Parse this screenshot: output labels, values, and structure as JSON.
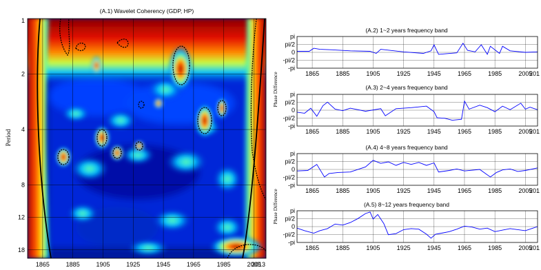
{
  "chart_data": [
    {
      "type": "heatmap",
      "title": "(A.1)  Wavelet Coherency (GDP, HP)",
      "xlabel": "",
      "ylabel": "Period",
      "xlim": [
        1855,
        2013
      ],
      "xticks": [
        "1865",
        "1885",
        "1905",
        "1925",
        "1945",
        "1965",
        "1985",
        "2005",
        "2013"
      ],
      "yticks": [
        1,
        2,
        4,
        8,
        12,
        18
      ],
      "yscale": "log2",
      "colormap": "jet",
      "grid": true
    },
    {
      "type": "line",
      "title": "(A.2)  1~2 years frequency band",
      "ylabel": "Phase Difference",
      "xticks": [
        "1865",
        "1885",
        "1905",
        "1925",
        "1945",
        "1965",
        "1985",
        "2005",
        "201"
      ],
      "yticks": [
        "pi",
        "pi/2",
        "0",
        "-pi/2",
        "-pi"
      ],
      "ylim": [
        -3.1416,
        3.1416
      ],
      "series": [
        {
          "x": [
            1855,
            1863,
            1866,
            1870,
            1878,
            1890,
            1903,
            1907,
            1910,
            1925,
            1938,
            1943,
            1945,
            1948,
            1960,
            1964,
            1967,
            1972,
            1976,
            1980,
            1982,
            1988,
            1990,
            1995,
            2005,
            2013
          ],
          "y": [
            0.2,
            0.2,
            0.8,
            0.6,
            0.5,
            0.3,
            0.2,
            -0.2,
            0.6,
            0.1,
            -0.2,
            0.3,
            1.5,
            -0.4,
            -0.1,
            1.8,
            0.4,
            0.1,
            1.5,
            -0.4,
            1.2,
            -0.2,
            1.2,
            0.3,
            0.0,
            0.1
          ]
        }
      ]
    },
    {
      "type": "line",
      "title": "(A.3)  2~4 years frequency band",
      "ylabel": "",
      "xticks": [
        "1865",
        "1885",
        "1905",
        "1925",
        "1945",
        "1965",
        "1985",
        "2005",
        "201"
      ],
      "yticks": [
        "pi",
        "pi/2",
        "0",
        "-pi/2",
        "-pi"
      ],
      "ylim": [
        -3.1416,
        3.1416
      ],
      "series": [
        {
          "x": [
            1855,
            1860,
            1864,
            1868,
            1872,
            1875,
            1880,
            1885,
            1890,
            1900,
            1910,
            1913,
            1920,
            1930,
            1940,
            1945,
            1947,
            1952,
            1957,
            1963,
            1965,
            1968,
            1975,
            1980,
            1985,
            1990,
            1995,
            2002,
            2005,
            2008,
            2013
          ],
          "y": [
            -0.4,
            -0.6,
            0.4,
            -1.2,
            0.9,
            1.6,
            0.2,
            -0.1,
            0.4,
            -0.2,
            0.3,
            -1.1,
            0.3,
            0.5,
            0.8,
            -0.3,
            -1.5,
            -1.6,
            -2.0,
            -1.8,
            1.8,
            0.2,
            1.0,
            0.5,
            -0.3,
            0.8,
            0.1,
            1.4,
            0.2,
            0.6,
            0.1
          ]
        }
      ]
    },
    {
      "type": "line",
      "title": "(A.4)  4~8 years frequency band",
      "ylabel": "Phase Difference",
      "xticks": [
        "1865",
        "1885",
        "1905",
        "1925",
        "1945",
        "1965",
        "1985",
        "2005",
        "201"
      ],
      "yticks": [
        "pi",
        "pi/2",
        "0",
        "-pi/2",
        "-pi"
      ],
      "ylim": [
        -3.1416,
        3.1416
      ],
      "series": [
        {
          "x": [
            1855,
            1862,
            1868,
            1873,
            1876,
            1882,
            1890,
            1900,
            1905,
            1910,
            1915,
            1920,
            1925,
            1930,
            1935,
            1940,
            1945,
            1948,
            1955,
            1960,
            1965,
            1975,
            1982,
            1986,
            1990,
            1995,
            2000,
            2005,
            2013
          ],
          "y": [
            -0.3,
            -0.2,
            1.0,
            -1.5,
            -0.8,
            -0.6,
            -0.5,
            0.5,
            1.8,
            1.2,
            1.5,
            0.8,
            1.4,
            1.0,
            1.4,
            0.8,
            1.3,
            -0.5,
            -0.2,
            0.1,
            -0.3,
            0.0,
            -1.5,
            -0.6,
            -0.1,
            0.1,
            -0.4,
            -0.2,
            0.3
          ]
        }
      ]
    },
    {
      "type": "line",
      "title": "(A.5)  8~12 years frequency band",
      "ylabel": "",
      "xticks": [
        "1865",
        "1885",
        "1905",
        "1925",
        "1945",
        "1965",
        "1985",
        "2005",
        "201"
      ],
      "yticks": [
        "pi",
        "pi/2",
        "0",
        "-pi/2",
        "-pi"
      ],
      "ylim": [
        -3.1416,
        3.1416
      ],
      "series": [
        {
          "x": [
            1855,
            1860,
            1866,
            1870,
            1875,
            1880,
            1885,
            1890,
            1895,
            1900,
            1903,
            1905,
            1908,
            1912,
            1915,
            1920,
            1925,
            1930,
            1935,
            1940,
            1943,
            1946,
            1950,
            1955,
            1960,
            1965,
            1970,
            1975,
            1980,
            1985,
            1990,
            1995,
            2000,
            2005,
            2010,
            2013
          ],
          "y": [
            -0.3,
            -0.8,
            -1.3,
            -0.8,
            -0.4,
            0.5,
            0.3,
            0.8,
            1.6,
            2.6,
            2.9,
            1.5,
            2.4,
            0.6,
            -1.6,
            -1.4,
            -0.6,
            -0.4,
            -0.5,
            -1.5,
            -2.3,
            -1.5,
            -1.3,
            -1.0,
            -0.5,
            0.1,
            -0.1,
            -0.5,
            -0.3,
            -1.0,
            -0.7,
            -0.4,
            -0.6,
            -0.8,
            -0.3,
            0.0
          ]
        }
      ]
    }
  ]
}
